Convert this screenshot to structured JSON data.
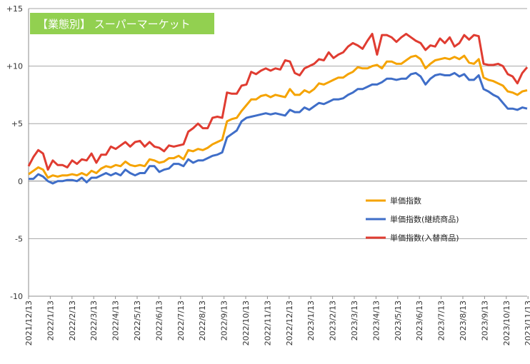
{
  "chart_data": {
    "type": "line",
    "title": "【業態別】 スーパーマーケット",
    "title_bg_color": "#92d050",
    "xlabel": "",
    "ylabel": "",
    "ylim": [
      -10,
      15
    ],
    "y_ticks": [
      -10,
      -5,
      0,
      5,
      10,
      15
    ],
    "y_tick_labels": [
      "-10",
      "-5",
      "0",
      "+5",
      "+10",
      "+15"
    ],
    "x_tick_labels": [
      "2021/12/13",
      "2022/1/13",
      "2022/2/13",
      "2022/3/13",
      "2022/4/13",
      "2022/5/13",
      "2022/6/13",
      "2022/7/13",
      "2022/8/13",
      "2022/9/13",
      "2022/10/13",
      "2022/11/13",
      "2022/12/13",
      "2023/1/13",
      "2023/2/13",
      "2023/3/13",
      "2023/4/13",
      "2023/5/13",
      "2023/6/13",
      "2023/7/13",
      "2023/8/13",
      "2023/9/13",
      "2023/10/13",
      "2023/11/13"
    ],
    "grid": "horizontal",
    "legend_position": "right",
    "series": [
      {
        "name": "単価指数",
        "color": "#f5a300",
        "values": [
          0.6,
          0.9,
          1.2,
          1.0,
          0.3,
          0.5,
          0.4,
          0.5,
          0.5,
          0.6,
          0.5,
          0.7,
          0.5,
          0.9,
          0.7,
          1.1,
          1.3,
          1.2,
          1.4,
          1.3,
          1.7,
          1.4,
          1.3,
          1.4,
          1.3,
          1.9,
          1.8,
          1.6,
          1.7,
          2.0,
          2.0,
          2.2,
          1.9,
          2.7,
          2.6,
          2.8,
          2.7,
          2.9,
          3.2,
          3.4,
          3.6,
          5.2,
          5.4,
          5.5,
          6.1,
          6.6,
          7.1,
          7.1,
          7.4,
          7.5,
          7.3,
          7.5,
          7.4,
          7.3,
          8.0,
          7.5,
          7.5,
          7.9,
          7.7,
          8.0,
          8.5,
          8.4,
          8.6,
          8.8,
          9.0,
          9.0,
          9.3,
          9.5,
          9.9,
          9.8,
          9.8,
          10.0,
          10.1,
          9.8,
          10.4,
          10.4,
          10.2,
          10.2,
          10.5,
          10.8,
          10.9,
          10.6,
          9.8,
          10.2,
          10.5,
          10.6,
          10.7,
          10.6,
          10.8,
          10.6,
          10.9,
          10.3,
          10.2,
          10.6,
          9.0,
          8.8,
          8.7,
          8.5,
          8.3,
          7.8,
          7.7,
          7.5,
          7.8,
          7.9
        ]
      },
      {
        "name": "単価指数(継続商品)",
        "color": "#3f6ec8",
        "values": [
          0.2,
          0.2,
          0.6,
          0.4,
          0.0,
          -0.2,
          0.0,
          0.0,
          0.1,
          0.1,
          0.0,
          0.3,
          -0.1,
          0.3,
          0.3,
          0.5,
          0.7,
          0.5,
          0.7,
          0.5,
          1.0,
          0.7,
          0.5,
          0.7,
          0.7,
          1.3,
          1.3,
          0.8,
          1.0,
          1.1,
          1.5,
          1.5,
          1.3,
          1.9,
          1.6,
          1.8,
          1.8,
          2.0,
          2.2,
          2.3,
          2.5,
          3.8,
          4.1,
          4.4,
          5.2,
          5.5,
          5.6,
          5.7,
          5.8,
          5.9,
          5.8,
          5.9,
          5.8,
          5.7,
          6.2,
          6.0,
          6.0,
          6.4,
          6.2,
          6.5,
          6.8,
          6.7,
          6.9,
          7.1,
          7.1,
          7.2,
          7.5,
          7.7,
          8.0,
          8.0,
          8.2,
          8.4,
          8.4,
          8.6,
          8.9,
          8.9,
          8.8,
          8.9,
          8.9,
          9.3,
          9.4,
          9.1,
          8.4,
          8.9,
          9.2,
          9.3,
          9.2,
          9.2,
          9.4,
          9.1,
          9.3,
          8.8,
          8.8,
          9.2,
          8.0,
          7.8,
          7.5,
          7.3,
          6.8,
          6.3,
          6.3,
          6.2,
          6.4,
          6.3
        ]
      },
      {
        "name": "単価指数(入替商品)",
        "color": "#e03c31",
        "values": [
          1.3,
          2.1,
          2.7,
          2.4,
          1.0,
          1.8,
          1.4,
          1.4,
          1.2,
          1.8,
          1.5,
          1.9,
          1.8,
          2.4,
          1.6,
          2.3,
          2.3,
          3.0,
          2.8,
          3.1,
          3.4,
          3.0,
          3.4,
          3.5,
          3.0,
          3.4,
          3.0,
          2.9,
          2.6,
          3.1,
          3.0,
          3.1,
          3.2,
          4.3,
          4.6,
          5.0,
          4.6,
          4.6,
          5.5,
          5.6,
          5.5,
          7.7,
          7.6,
          7.6,
          8.3,
          8.4,
          9.5,
          9.3,
          9.6,
          9.8,
          9.6,
          9.8,
          9.7,
          10.5,
          10.4,
          9.4,
          9.2,
          9.8,
          10.0,
          10.2,
          10.6,
          10.5,
          11.2,
          10.7,
          11.0,
          11.2,
          11.7,
          12.0,
          11.8,
          11.5,
          12.2,
          12.8,
          11.0,
          12.7,
          12.7,
          12.5,
          12.1,
          12.5,
          12.8,
          12.5,
          12.2,
          12.0,
          11.4,
          11.8,
          11.7,
          12.4,
          12.0,
          12.5,
          11.7,
          12.0,
          12.7,
          12.3,
          12.7,
          12.6,
          10.2,
          10.1,
          10.1,
          10.2,
          10.0,
          9.3,
          9.1,
          8.5,
          9.4,
          9.9
        ]
      }
    ]
  }
}
